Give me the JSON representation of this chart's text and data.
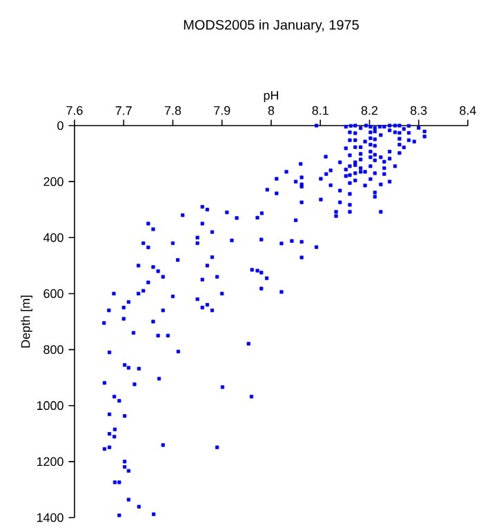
{
  "chart_data": {
    "type": "scatter",
    "title": "MODS2005 in January, 1975",
    "xlabel": "pH",
    "ylabel": "Depth [m]",
    "xlim": [
      7.6,
      8.4
    ],
    "xticks": [
      7.6,
      7.7,
      7.8,
      7.9,
      8,
      8.1,
      8.2,
      8.3,
      8.4
    ],
    "ylim": [
      1400,
      0
    ],
    "yticks": [
      0,
      200,
      400,
      600,
      800,
      1000,
      1200,
      1400
    ],
    "marker": "square",
    "grid": false,
    "series": [
      {
        "color": "#0000ff",
        "x": [
          8.092,
          8.152,
          8.162,
          8.171,
          8.182,
          8.193,
          8.202,
          8.211,
          8.221,
          8.23,
          8.241,
          8.252,
          8.261,
          8.28,
          8.3,
          8.312,
          8.312,
          8.16,
          8.171,
          8.202,
          8.211,
          8.223,
          8.241,
          8.252,
          8.261,
          8.27,
          8.28,
          8.16,
          8.171,
          8.191,
          8.202,
          8.211,
          8.261,
          8.261,
          8.27,
          8.28,
          8.291,
          8.152,
          8.171,
          8.182,
          8.202,
          8.211,
          8.241,
          8.261,
          8.111,
          8.16,
          8.182,
          8.202,
          8.211,
          8.223,
          8.241,
          8.14,
          8.171,
          8.182,
          8.202,
          8.211,
          8.23,
          8.06,
          8.16,
          8.171,
          8.182,
          8.202,
          8.23,
          8.252,
          8.121,
          8.152,
          8.171,
          8.182,
          8.191,
          8.211,
          8.031,
          8.062,
          8.112,
          8.152,
          8.16,
          8.171,
          8.202,
          8.23,
          8.101,
          8.011,
          8.05,
          8.062,
          8.16,
          8.191,
          8.223,
          8.241,
          8.121,
          8.062,
          7.992,
          8.14,
          8.16,
          8.211,
          8.211,
          8.011,
          8.101,
          8.062,
          8.14,
          8.16,
          8.132,
          8.132,
          8.16,
          8.223,
          7.981,
          7.972,
          8.05,
          7.98,
          8.021,
          8.042,
          8.062,
          8.092,
          8.062,
          7.961,
          7.972,
          7.98,
          7.991,
          7.98,
          8.021,
          7.954,
          7.671,
          7.811,
          7.702,
          7.71,
          7.731,
          7.661,
          7.772,
          7.722,
          7.901,
          7.681,
          7.691,
          7.96,
          7.671,
          7.702,
          7.682,
          7.671,
          7.681,
          7.661,
          7.671,
          7.78,
          7.89,
          7.702,
          7.702,
          7.71,
          7.682,
          7.691,
          7.71,
          7.731,
          7.691,
          7.761,
          7.75,
          7.76,
          7.74,
          7.75,
          7.73,
          7.76,
          7.77,
          7.75,
          7.74,
          7.73,
          7.78,
          7.68,
          7.71,
          7.78,
          7.76,
          7.77,
          7.79,
          7.72,
          7.7,
          7.82,
          7.86,
          7.87,
          7.86,
          7.88,
          7.85,
          7.85,
          7.88,
          7.87,
          7.89,
          7.86,
          7.85,
          7.86,
          7.87,
          7.88,
          7.9,
          7.8,
          7.81,
          7.92,
          7.93,
          7.91,
          7.8,
          7.66,
          7.7,
          7.67
        ],
        "values": [
          0,
          4,
          1,
          0,
          9,
          0,
          4,
          9,
          4,
          4,
          0,
          0,
          0,
          1,
          8,
          21,
          39,
          24,
          27,
          24,
          21,
          34,
          17,
          24,
          26,
          12,
          26,
          52,
          52,
          57,
          45,
          49,
          47,
          68,
          78,
          52,
          57,
          81,
          77,
          77,
          68,
          72,
          93,
          98,
          111,
          106,
          101,
          93,
          104,
          113,
          118,
          131,
          131,
          121,
          113,
          124,
          129,
          137,
          145,
          141,
          152,
          145,
          152,
          145,
          160,
          157,
          170,
          165,
          165,
          170,
          165,
          185,
          173,
          180,
          177,
          196,
          191,
          173,
          190,
          190,
          200,
          210,
          205,
          214,
          210,
          200,
          213,
          218,
          229,
          232,
          244,
          239,
          254,
          242,
          264,
          274,
          274,
          283,
          308,
          323,
          308,
          308,
          313,
          329,
          338,
          407,
          421,
          412,
          415,
          434,
          471,
          515,
          518,
          525,
          545,
          582,
          594,
          779,
          810,
          807,
          855,
          865,
          868,
          919,
          904,
          924,
          934,
          968,
          983,
          968,
          1031,
          1037,
          1085,
          1101,
          1111,
          1155,
          1149,
          1141,
          1149,
          1200,
          1219,
          1233,
          1274,
          1274,
          1336,
          1361,
          1392,
          1388,
          350,
          370,
          420,
          435,
          500,
          505,
          520,
          560,
          590,
          600,
          540,
          600,
          630,
          660,
          700,
          750,
          750,
          740,
          690,
          320,
          290,
          300,
          350,
          380,
          400,
          420,
          470,
          500,
          540,
          550,
          620,
          650,
          640,
          660,
          600,
          420,
          480,
          410,
          330,
          310,
          610,
          705,
          650,
          660
        ]
      }
    ]
  }
}
